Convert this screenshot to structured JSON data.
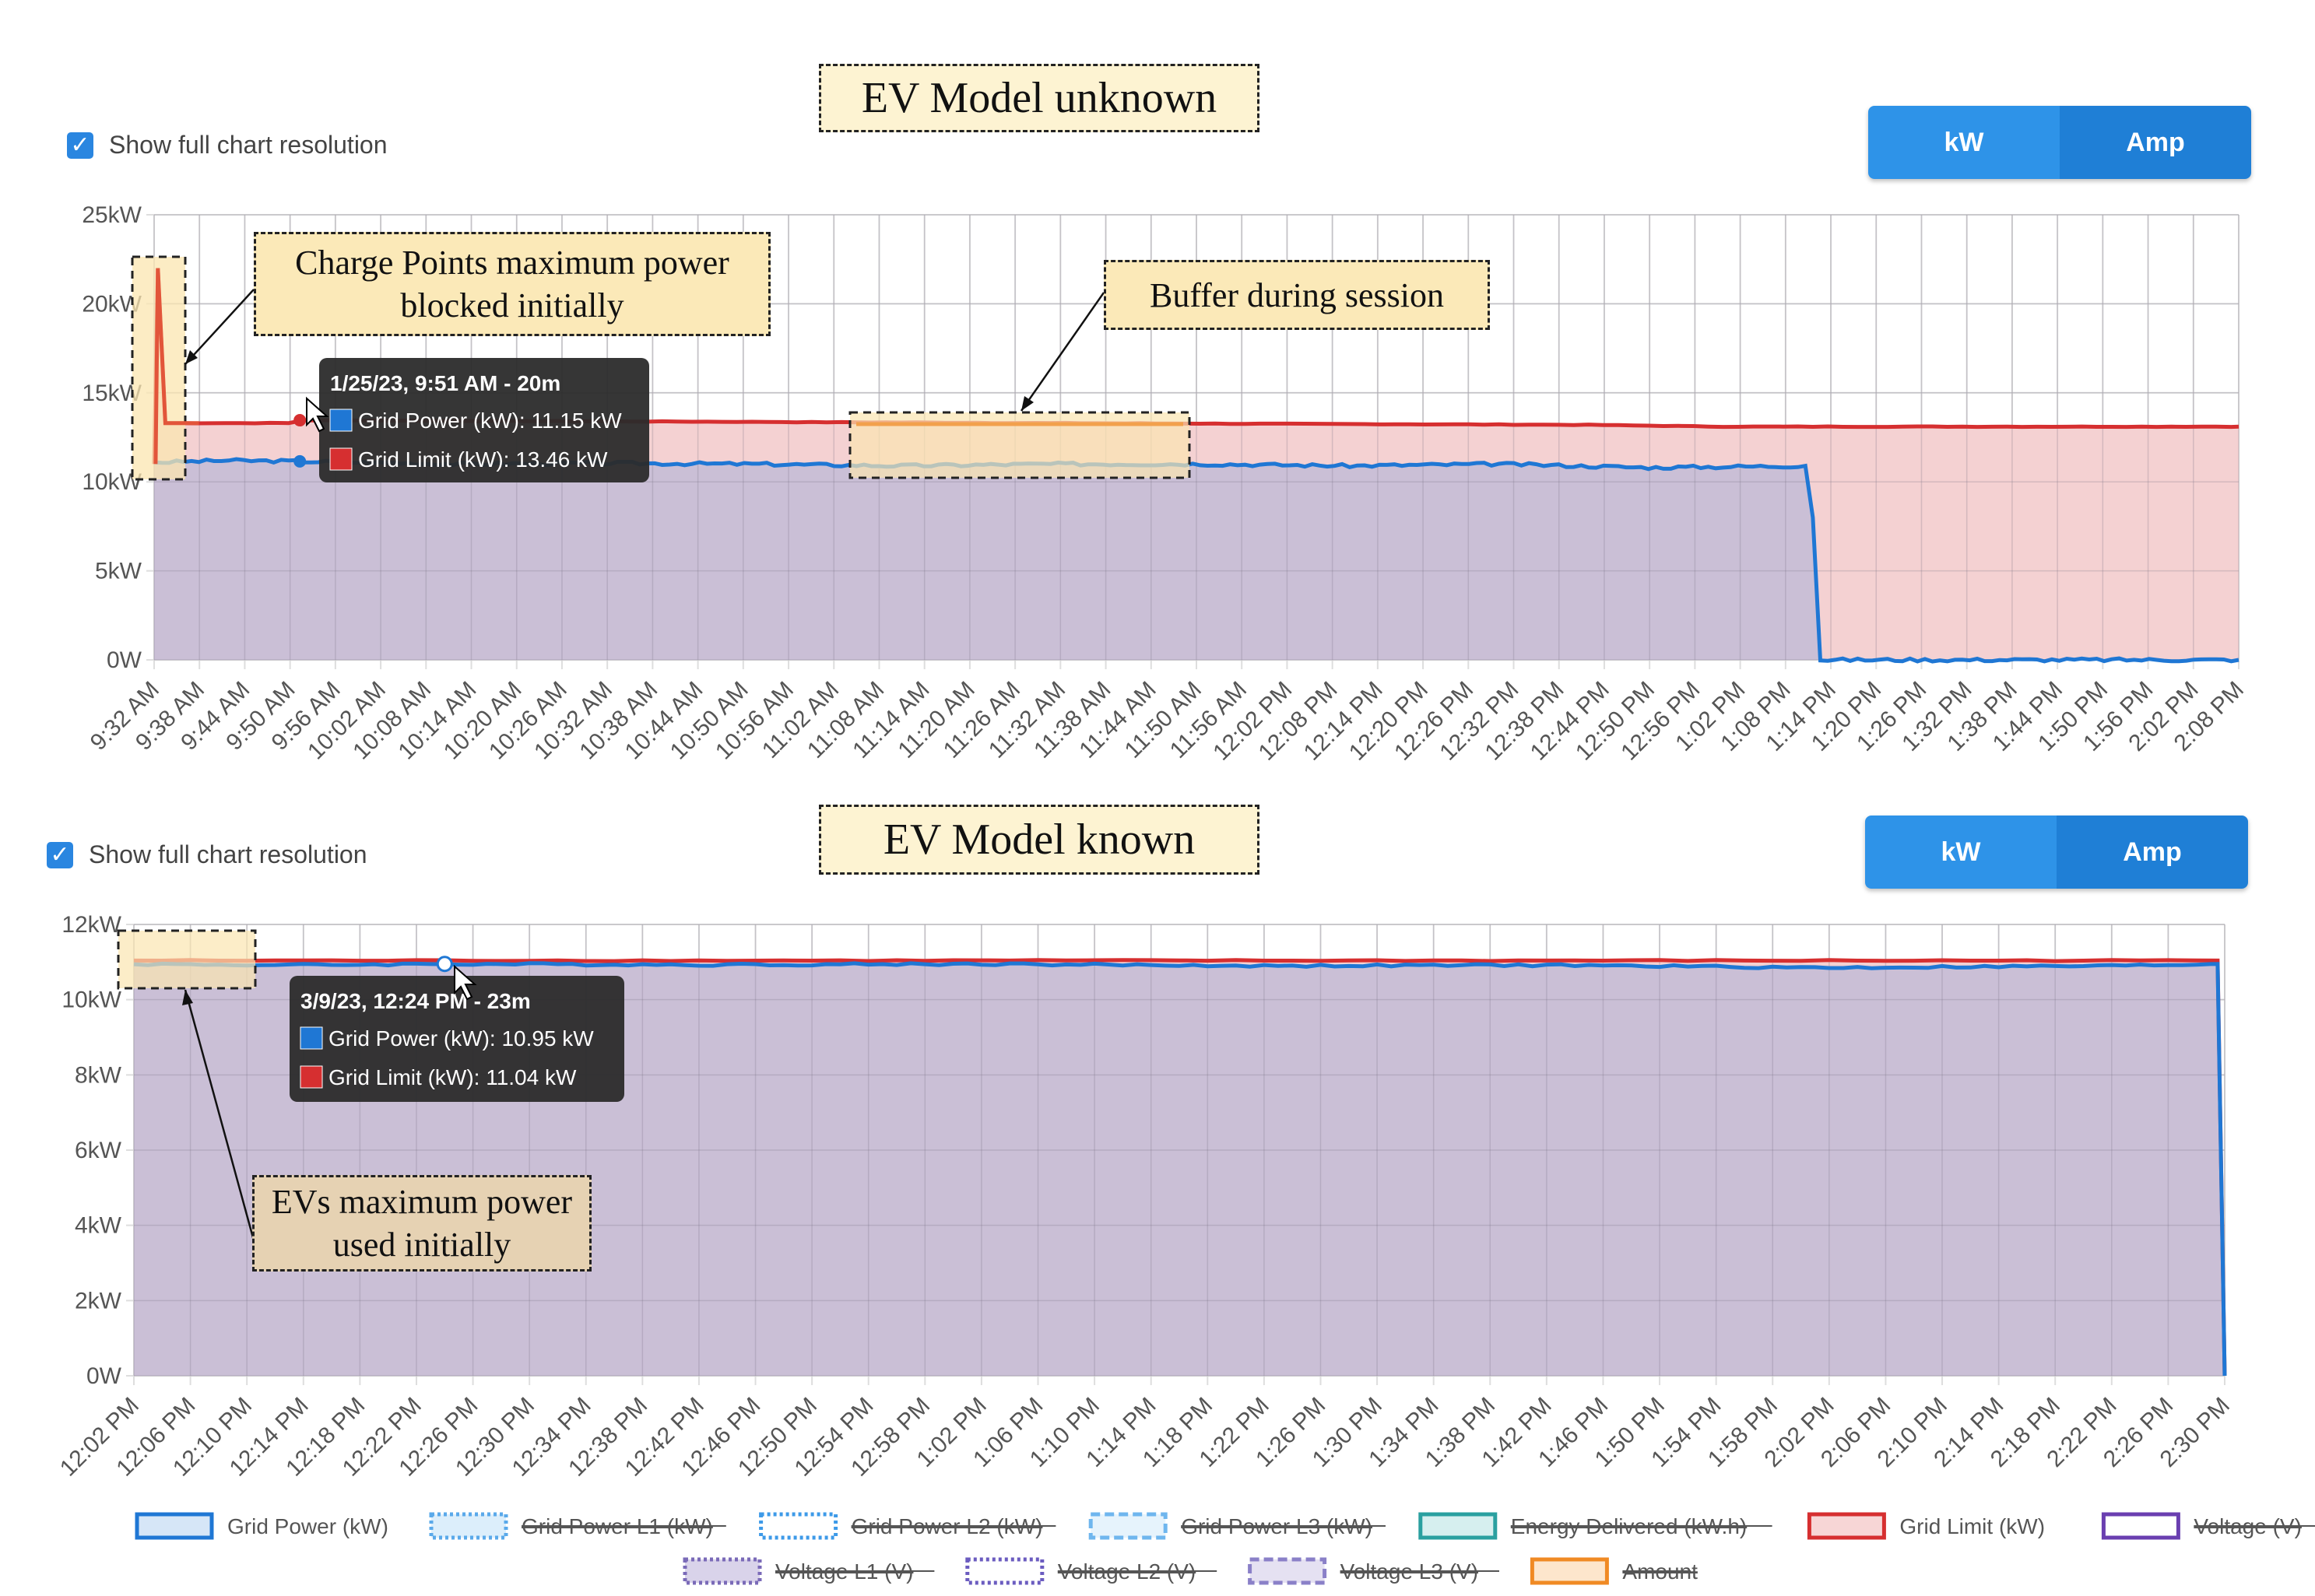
{
  "colors": {
    "grid_power": "#1f77d4",
    "grid_limit": "#d62f30",
    "purple_fill": "#c9bfd6",
    "pink_fill": "#f3cfd0",
    "amount": "#f2a04c",
    "highlight": "#fbe6b0",
    "toggle_kw": "#2e93e8",
    "toggle_amp": "#1f7fd6",
    "tooltip_bg": "#2b2b2b"
  },
  "panels": [
    {
      "banner": "EV Model unknown",
      "checkbox_label": "Show full chart resolution",
      "toggle": {
        "kw": "kW",
        "amp": "Amp"
      },
      "tooltip": {
        "title": "1/25/23, 9:51 AM - 20m",
        "rows": [
          "Grid Power (kW):  11.15 kW",
          "Grid Limit (kW):  13.46 kW"
        ]
      },
      "callouts": [
        "Charge Points maximum power blocked initially",
        "Buffer during session"
      ]
    },
    {
      "banner": "EV Model known",
      "checkbox_label": "Show full chart resolution",
      "toggle": {
        "kw": "kW",
        "amp": "Amp"
      },
      "tooltip": {
        "title": "3/9/23, 12:24 PM - 23m",
        "rows": [
          "Grid Power (kW):  10.95 kW",
          "Grid Limit (kW):  11.04 kW"
        ]
      },
      "callouts": [
        "EVs maximum power used initially"
      ]
    }
  ],
  "legend": [
    {
      "label": "Grid Power (kW)",
      "style": "solid",
      "color": "#1f77d4",
      "fill": "#d6e6f7",
      "struck": false
    },
    {
      "label": "Grid Power L1 (kW)",
      "style": "dotted",
      "color": "#5aa9ea",
      "fill": "#dceefb",
      "struck": true
    },
    {
      "label": "Grid Power L2 (kW)",
      "style": "dotted",
      "color": "#3d9ae8",
      "fill": "#ffffff",
      "struck": true
    },
    {
      "label": "Grid Power L3 (kW)",
      "style": "dashed",
      "color": "#6fb6ee",
      "fill": "#e6f3fc",
      "struck": true
    },
    {
      "label": "Energy Delivered (kW.h)",
      "style": "solid",
      "color": "#2aa0a0",
      "fill": "#d6efef",
      "struck": true
    },
    {
      "label": "Grid Limit (kW)",
      "style": "solid",
      "color": "#d62f30",
      "fill": "#f7d6d6",
      "struck": false
    },
    {
      "label": "Voltage (V)",
      "style": "solid",
      "color": "#6a3fb0",
      "fill": "#ffffff",
      "struck": true
    },
    {
      "label": "Voltage L1 (V)",
      "style": "dotted",
      "color": "#7a6ab8",
      "fill": "#d9d3ea",
      "struck": true
    },
    {
      "label": "Voltage L2 (V)",
      "style": "dotted",
      "color": "#6b5cc0",
      "fill": "#ffffff",
      "struck": true
    },
    {
      "label": "Voltage L3 (V)",
      "style": "dashed",
      "color": "#8a80c8",
      "fill": "#e5e1f2",
      "struck": true
    },
    {
      "label": "Amount",
      "style": "solid",
      "color": "#f08a24",
      "fill": "#fde6cc",
      "struck": true
    }
  ],
  "chart_data": [
    {
      "type": "area",
      "y_unit": "kW",
      "ylim": [
        0,
        25
      ],
      "y_ticks": [
        "0W",
        "5kW",
        "10kW",
        "15kW",
        "20kW",
        "25kW"
      ],
      "x_ticks": [
        "9:32 AM",
        "9:38 AM",
        "9:44 AM",
        "9:50 AM",
        "9:56 AM",
        "10:02 AM",
        "10:08 AM",
        "10:14 AM",
        "10:20 AM",
        "10:26 AM",
        "10:32 AM",
        "10:38 AM",
        "10:44 AM",
        "10:50 AM",
        "10:56 AM",
        "11:02 AM",
        "11:08 AM",
        "11:14 AM",
        "11:20 AM",
        "11:26 AM",
        "11:32 AM",
        "11:38 AM",
        "11:44 AM",
        "11:50 AM",
        "11:56 AM",
        "12:02 PM",
        "12:08 PM",
        "12:14 PM",
        "12:20 PM",
        "12:26 PM",
        "12:32 PM",
        "12:38 PM",
        "12:44 PM",
        "12:50 PM",
        "12:56 PM",
        "1:02 PM",
        "1:08 PM",
        "1:14 PM",
        "1:20 PM",
        "1:26 PM",
        "1:32 PM",
        "1:38 PM",
        "1:44 PM",
        "1:50 PM",
        "1:56 PM",
        "2:02 PM",
        "2:08 PM"
      ],
      "x_domain_minutes": [
        0,
        279
      ],
      "grid": true,
      "series": [
        {
          "name": "Grid Limit (kW)",
          "x_minutes": [
            0,
            0.5,
            1.5,
            18,
            20,
            60,
            120,
            192,
            210,
            279
          ],
          "values": [
            11,
            22,
            13.3,
            13.3,
            13.46,
            13.4,
            13.3,
            13.2,
            13.1,
            13.1
          ]
        },
        {
          "name": "Grid Power (kW)",
          "x_minutes": [
            0,
            1,
            10,
            20,
            40,
            60,
            80,
            100,
            120,
            140,
            160,
            180,
            200,
            221,
            222,
            223,
            279
          ],
          "values": [
            11.1,
            11.1,
            11.2,
            11.15,
            11.0,
            11.05,
            11.0,
            10.9,
            11.0,
            11.0,
            10.9,
            11.0,
            10.8,
            10.9,
            8.0,
            0,
            0
          ]
        }
      ]
    },
    {
      "type": "area",
      "y_unit": "kW",
      "ylim": [
        0,
        12
      ],
      "y_ticks": [
        "0W",
        "2kW",
        "4kW",
        "6kW",
        "8kW",
        "10kW",
        "12kW"
      ],
      "x_ticks": [
        "12:02 PM",
        "12:06 PM",
        "12:10 PM",
        "12:14 PM",
        "12:18 PM",
        "12:22 PM",
        "12:26 PM",
        "12:30 PM",
        "12:34 PM",
        "12:38 PM",
        "12:42 PM",
        "12:46 PM",
        "12:50 PM",
        "12:54 PM",
        "12:58 PM",
        "1:02 PM",
        "1:06 PM",
        "1:10 PM",
        "1:14 PM",
        "1:18 PM",
        "1:22 PM",
        "1:26 PM",
        "1:30 PM",
        "1:34 PM",
        "1:38 PM",
        "1:42 PM",
        "1:46 PM",
        "1:50 PM",
        "1:54 PM",
        "1:58 PM",
        "2:02 PM",
        "2:06 PM",
        "2:10 PM",
        "2:14 PM",
        "2:18 PM",
        "2:22 PM",
        "2:26 PM",
        "2:30 PM"
      ],
      "x_domain_minutes": [
        0,
        148
      ],
      "grid": true,
      "series": [
        {
          "name": "Grid Limit (kW)",
          "x_minutes": [
            0,
            20,
            60,
            100,
            147.5,
            148
          ],
          "values": [
            11.04,
            11.04,
            11.04,
            11.04,
            11.04,
            0
          ]
        },
        {
          "name": "Grid Power (kW)",
          "x_minutes": [
            0,
            10,
            22,
            40,
            60,
            80,
            100,
            120,
            140,
            147.5,
            148
          ],
          "values": [
            10.95,
            10.92,
            10.95,
            10.93,
            10.95,
            10.9,
            10.92,
            10.85,
            10.9,
            10.95,
            0
          ]
        }
      ]
    }
  ]
}
